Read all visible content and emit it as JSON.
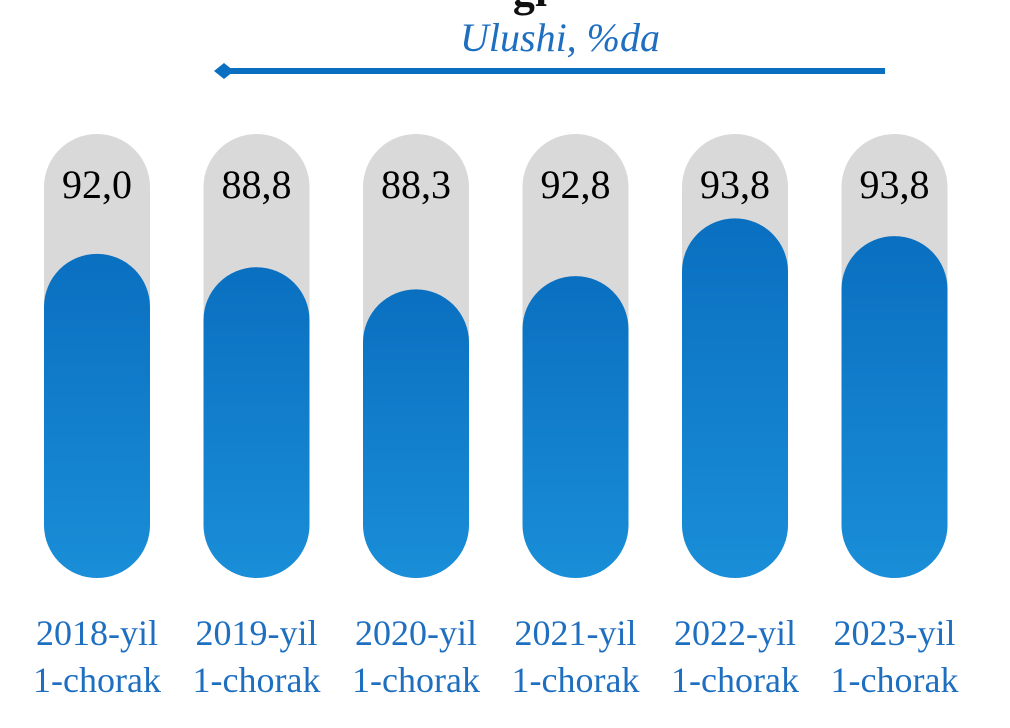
{
  "header": {
    "title_fragment": "gi",
    "subtitle": "Ulushi, %da"
  },
  "colors": {
    "bar_top": "#0a6fc0",
    "bar_bottom": "#1a8ed8",
    "track": "#d9d9d9",
    "arrow": "#0a6fc0",
    "category_text": "#1f6fc1"
  },
  "chart_data": {
    "type": "bar",
    "title": "",
    "subtitle": "Ulushi, %da",
    "categories": [
      [
        "2018-yil",
        "1-chorak"
      ],
      [
        "2019-yil",
        "1-chorak"
      ],
      [
        "2020-yil",
        "1-chorak"
      ],
      [
        "2021-yil",
        "1-chorak"
      ],
      [
        "2022-yil",
        "1-chorak"
      ],
      [
        "2023-yil",
        "1-chorak"
      ]
    ],
    "values": [
      92.0,
      88.8,
      88.3,
      92.8,
      93.8,
      93.8
    ],
    "value_labels": [
      "92,0",
      "88,8",
      "88,3",
      "92,8",
      "93,8",
      "93,8"
    ],
    "bar_fill_fraction": [
      0.73,
      0.7,
      0.65,
      0.68,
      0.81,
      0.77
    ],
    "arrow_direction": "left",
    "grid": false,
    "legend": "none"
  }
}
